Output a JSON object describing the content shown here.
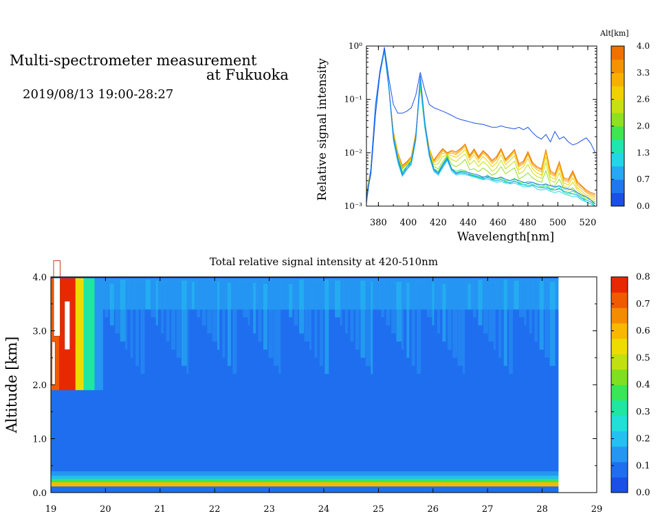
{
  "header": {
    "title_line1": "Multi-spectrometer measurement",
    "title_line2": "at Fukuoka",
    "datetime": "2019/08/13 19:00-28:27"
  },
  "chart_data": [
    {
      "type": "line",
      "xlabel": "Wavelength[nm]",
      "ylabel": "Relative signal intensity",
      "xlim": [
        372,
        526
      ],
      "ylim": [
        0.001,
        1
      ],
      "yscale": "log",
      "x_ticks": [
        "380",
        "400",
        "420",
        "440",
        "460",
        "480",
        "500",
        "520"
      ],
      "y_ticks": [
        "10⁻³",
        "10⁻²",
        "10⁻¹",
        "10⁰"
      ],
      "colorbar": {
        "label": "Alt[km]",
        "ticks": [
          "0.0",
          "0.7",
          "1.3",
          "2.0",
          "2.6",
          "3.3",
          "4.0"
        ],
        "colors": [
          "#1a50e6",
          "#1f78f0",
          "#26a8f5",
          "#22d6e8",
          "#1fe6b0",
          "#3ee650",
          "#8ee020",
          "#c8e010",
          "#f0d000",
          "#f8b000",
          "#f49200",
          "#f07000"
        ]
      },
      "x": [
        372,
        375,
        378,
        381,
        384,
        387,
        390,
        393,
        396,
        399,
        402,
        405,
        408,
        411,
        414,
        417,
        420,
        423,
        426,
        429,
        432,
        435,
        438,
        441,
        444,
        447,
        450,
        453,
        456,
        459,
        462,
        465,
        468,
        471,
        474,
        477,
        480,
        483,
        486,
        489,
        492,
        495,
        498,
        501,
        504,
        507,
        510,
        513,
        516,
        519,
        522,
        525
      ],
      "series": [
        {
          "color": "#1a50e6",
          "values": [
            0.0015,
            0.004,
            0.05,
            0.3,
            0.95,
            0.25,
            0.08,
            0.055,
            0.055,
            0.06,
            0.07,
            0.12,
            0.32,
            0.15,
            0.08,
            0.07,
            0.065,
            0.06,
            0.055,
            0.05,
            0.045,
            0.042,
            0.04,
            0.038,
            0.036,
            0.035,
            0.034,
            0.032,
            0.03,
            0.03,
            0.032,
            0.03,
            0.029,
            0.028,
            0.03,
            0.027,
            0.03,
            0.024,
            0.02,
            0.018,
            0.022,
            0.016,
            0.025,
            0.018,
            0.02,
            0.016,
            0.014,
            0.015,
            0.017,
            0.019,
            0.015,
            0.01
          ]
        },
        {
          "color": "#1f78f0",
          "values": [
            0.0012,
            0.005,
            0.08,
            0.35,
            0.9,
            0.18,
            0.02,
            0.008,
            0.004,
            0.0055,
            0.007,
            0.02,
            0.28,
            0.04,
            0.01,
            0.005,
            0.0042,
            0.006,
            0.008,
            0.005,
            0.0042,
            0.0045,
            0.0044,
            0.0042,
            0.004,
            0.0038,
            0.0035,
            0.0036,
            0.0034,
            0.0033,
            0.0035,
            0.0032,
            0.003,
            0.0032,
            0.003,
            0.0028,
            0.0027,
            0.0028,
            0.0026,
            0.0025,
            0.0026,
            0.0024,
            0.0023,
            0.0024,
            0.0022,
            0.0021,
            0.002,
            0.0018,
            0.0016,
            0.0015,
            0.0013,
            0.0011
          ]
        },
        {
          "color": "#26a8f5",
          "values": [
            0.0011,
            0.005,
            0.07,
            0.32,
            0.85,
            0.17,
            0.018,
            0.007,
            0.0038,
            0.005,
            0.0065,
            0.018,
            0.25,
            0.035,
            0.009,
            0.0048,
            0.004,
            0.0055,
            0.0075,
            0.0048,
            0.004,
            0.0042,
            0.0041,
            0.0039,
            0.0037,
            0.0035,
            0.0033,
            0.0034,
            0.0032,
            0.003,
            0.0031,
            0.0029,
            0.0027,
            0.0029,
            0.0027,
            0.0025,
            0.0024,
            0.0025,
            0.0023,
            0.0022,
            0.0022,
            0.0021,
            0.002,
            0.0021,
            0.0019,
            0.0018,
            0.0017,
            0.0016,
            0.0014,
            0.0013,
            0.0012,
            0.001
          ]
        },
        {
          "color": "#22d6e8",
          "values": [
            0.0012,
            0.005,
            0.07,
            0.3,
            0.8,
            0.16,
            0.017,
            0.0065,
            0.0036,
            0.0048,
            0.006,
            0.017,
            0.22,
            0.032,
            0.0085,
            0.0045,
            0.0038,
            0.0052,
            0.0072,
            0.0045,
            0.0038,
            0.004,
            0.0039,
            0.0037,
            0.0035,
            0.0033,
            0.0031,
            0.0032,
            0.003,
            0.0028,
            0.0029,
            0.0027,
            0.0026,
            0.0027,
            0.0025,
            0.0023,
            0.0023,
            0.0024,
            0.0021,
            0.002,
            0.0021,
            0.0019,
            0.0018,
            0.0019,
            0.0017,
            0.0016,
            0.0015,
            0.0015,
            0.0013,
            0.0012,
            0.0011,
            0.001
          ]
        },
        {
          "color": "#1fe6b0",
          "values": [
            0.0013,
            0.005,
            0.07,
            0.3,
            0.8,
            0.16,
            0.019,
            0.007,
            0.0042,
            0.005,
            0.0062,
            0.018,
            0.2,
            0.03,
            0.0085,
            0.0046,
            0.004,
            0.0056,
            0.0078,
            0.0048,
            0.0041,
            0.0043,
            0.0042,
            0.0038,
            0.0036,
            0.0034,
            0.0032,
            0.0035,
            0.0031,
            0.003,
            0.0032,
            0.0028,
            0.0028,
            0.003,
            0.0026,
            0.0025,
            0.0026,
            0.0026,
            0.0023,
            0.0022,
            0.0024,
            0.002,
            0.002,
            0.0022,
            0.0018,
            0.0017,
            0.0017,
            0.0016,
            0.0014,
            0.0012,
            0.0011,
            0.001
          ]
        },
        {
          "color": "#3ee650",
          "values": [
            0.0013,
            0.005,
            0.07,
            0.3,
            0.8,
            0.16,
            0.02,
            0.008,
            0.0045,
            0.0055,
            0.0065,
            0.02,
            0.19,
            0.03,
            0.009,
            0.005,
            0.0045,
            0.0062,
            0.0085,
            0.005,
            0.0045,
            0.0048,
            0.0046,
            0.004,
            0.0038,
            0.0036,
            0.0034,
            0.0038,
            0.0033,
            0.0032,
            0.0034,
            0.003,
            0.003,
            0.0033,
            0.0028,
            0.0027,
            0.0029,
            0.0028,
            0.0025,
            0.0023,
            0.0026,
            0.0021,
            0.0022,
            0.0024,
            0.0019,
            0.0018,
            0.0019,
            0.0017,
            0.0015,
            0.0013,
            0.0012,
            0.0011
          ]
        },
        {
          "color": "#8ee020",
          "values": [
            0.0014,
            0.005,
            0.07,
            0.3,
            0.8,
            0.16,
            0.02,
            0.008,
            0.005,
            0.006,
            0.007,
            0.02,
            0.18,
            0.03,
            0.009,
            0.0055,
            0.005,
            0.0068,
            0.009,
            0.006,
            0.0055,
            0.0062,
            0.0075,
            0.0048,
            0.005,
            0.0044,
            0.0052,
            0.0045,
            0.0038,
            0.0042,
            0.0055,
            0.004,
            0.0046,
            0.0052,
            0.0032,
            0.0036,
            0.0042,
            0.0034,
            0.003,
            0.0028,
            0.0046,
            0.0025,
            0.0024,
            0.0032,
            0.0021,
            0.002,
            0.0022,
            0.0018,
            0.0016,
            0.0014,
            0.0013,
            0.0012
          ]
        },
        {
          "color": "#c8e010",
          "values": [
            0.0015,
            0.005,
            0.07,
            0.3,
            0.8,
            0.16,
            0.022,
            0.009,
            0.005,
            0.006,
            0.0075,
            0.021,
            0.17,
            0.03,
            0.01,
            0.006,
            0.0062,
            0.0085,
            0.009,
            0.0075,
            0.0068,
            0.0082,
            0.0095,
            0.006,
            0.0072,
            0.0055,
            0.0068,
            0.0058,
            0.0045,
            0.0052,
            0.0072,
            0.005,
            0.0058,
            0.007,
            0.004,
            0.0045,
            0.006,
            0.0042,
            0.0036,
            0.0033,
            0.0065,
            0.003,
            0.0028,
            0.0042,
            0.0024,
            0.0022,
            0.0028,
            0.002,
            0.0017,
            0.0015,
            0.0014,
            0.0013
          ]
        },
        {
          "color": "#f0d000",
          "values": [
            0.0015,
            0.005,
            0.07,
            0.3,
            0.8,
            0.16,
            0.022,
            0.009,
            0.005,
            0.0062,
            0.0078,
            0.022,
            0.17,
            0.032,
            0.011,
            0.0065,
            0.0072,
            0.0098,
            0.0092,
            0.0088,
            0.0082,
            0.0095,
            0.0115,
            0.0072,
            0.0092,
            0.0066,
            0.0085,
            0.007,
            0.0055,
            0.0065,
            0.0092,
            0.006,
            0.0072,
            0.0088,
            0.0048,
            0.0055,
            0.0078,
            0.005,
            0.0042,
            0.0038,
            0.0085,
            0.0035,
            0.0032,
            0.0052,
            0.0027,
            0.0025,
            0.0034,
            0.0022,
            0.0019,
            0.0016,
            0.0015,
            0.0014
          ]
        },
        {
          "color": "#f8b000",
          "values": [
            0.0016,
            0.005,
            0.07,
            0.3,
            0.8,
            0.16,
            0.023,
            0.0095,
            0.0052,
            0.0064,
            0.008,
            0.022,
            0.17,
            0.034,
            0.012,
            0.0068,
            0.008,
            0.0108,
            0.0095,
            0.0098,
            0.0092,
            0.0108,
            0.013,
            0.008,
            0.0105,
            0.0075,
            0.0098,
            0.0082,
            0.0063,
            0.0075,
            0.0108,
            0.0068,
            0.0082,
            0.0102,
            0.0055,
            0.0062,
            0.0092,
            0.0058,
            0.0048,
            0.0044,
            0.0102,
            0.004,
            0.0036,
            0.006,
            0.003,
            0.0028,
            0.004,
            0.0025,
            0.0021,
            0.0018,
            0.0016,
            0.0015
          ]
        },
        {
          "color": "#f49200",
          "values": [
            0.0017,
            0.005,
            0.07,
            0.3,
            0.8,
            0.16,
            0.024,
            0.01,
            0.0055,
            0.0066,
            0.0082,
            0.023,
            0.17,
            0.035,
            0.012,
            0.007,
            0.0088,
            0.0115,
            0.0098,
            0.0105,
            0.0098,
            0.0115,
            0.014,
            0.0085,
            0.0112,
            0.008,
            0.0105,
            0.0088,
            0.0068,
            0.008,
            0.0115,
            0.0072,
            0.0088,
            0.011,
            0.0058,
            0.0066,
            0.0098,
            0.0062,
            0.0052,
            0.0048,
            0.011,
            0.0043,
            0.0038,
            0.0065,
            0.0032,
            0.003,
            0.0043,
            0.0027,
            0.0023,
            0.0019,
            0.0017,
            0.0016
          ]
        },
        {
          "color": "#f07000",
          "values": [
            0.0018,
            0.005,
            0.07,
            0.3,
            0.8,
            0.16,
            0.025,
            0.01,
            0.0058,
            0.0068,
            0.0085,
            0.024,
            0.17,
            0.036,
            0.012,
            0.0072,
            0.0095,
            0.012,
            0.01,
            0.011,
            0.0105,
            0.012,
            0.0145,
            0.009,
            0.0118,
            0.0085,
            0.011,
            0.0092,
            0.0072,
            0.0085,
            0.012,
            0.0076,
            0.0092,
            0.0115,
            0.0062,
            0.007,
            0.0105,
            0.0066,
            0.0055,
            0.005,
            0.0115,
            0.0046,
            0.004,
            0.0068,
            0.0034,
            0.0032,
            0.0046,
            0.0029,
            0.0024,
            0.002,
            0.0018,
            0.0017
          ]
        }
      ]
    },
    {
      "type": "heatmap",
      "title": "Total relative signal intensity at 420-510nm",
      "ylabel": "Altitude [km]",
      "xlim": [
        19,
        29
      ],
      "ylim": [
        0,
        4
      ],
      "x_ticks": [
        "19",
        "20",
        "21",
        "22",
        "23",
        "24",
        "25",
        "26",
        "27",
        "28",
        "29"
      ],
      "y_ticks": [
        "0.0",
        "1.0",
        "2.0",
        "3.0",
        "4.0"
      ],
      "data_x_range": [
        19,
        28.3
      ],
      "colorbar": {
        "range": [
          0,
          0.8
        ],
        "ticks": [
          "0.0",
          "0.1",
          "0.2",
          "0.3",
          "0.4",
          "0.5",
          "0.6",
          "0.7",
          "0.8"
        ],
        "colors": [
          "#1a50e6",
          "#1f6ef0",
          "#2596f2",
          "#24c0f0",
          "#20e0d8",
          "#1fe6a0",
          "#38e658",
          "#7ee020",
          "#c0e010",
          "#eedc00",
          "#f8b800",
          "#f48c00",
          "#f05a00",
          "#e82800"
        ]
      },
      "bands": [
        {
          "alt": [
            0.0,
            0.12
          ],
          "value": 0.1
        },
        {
          "alt": [
            0.12,
            0.2
          ],
          "value": 0.62
        },
        {
          "alt": [
            0.2,
            0.26
          ],
          "value": 0.38
        },
        {
          "alt": [
            0.26,
            0.32
          ],
          "value": 0.2
        },
        {
          "alt": [
            0.32,
            0.4
          ],
          "value": 0.14
        },
        {
          "alt": [
            0.4,
            1.6
          ],
          "value": 0.06
        },
        {
          "alt": [
            1.6,
            2.5
          ],
          "value": 0.085
        },
        {
          "alt": [
            2.5,
            3.4
          ],
          "value": 0.11
        },
        {
          "alt": [
            3.4,
            4.0
          ],
          "value": 0.15
        }
      ],
      "columns": [
        {
          "x": 19.0,
          "value": 0.7
        },
        {
          "x": 19.15,
          "value": 0.8
        },
        {
          "x": 19.3,
          "value": 0.75
        },
        {
          "x": 19.45,
          "value": 0.55
        },
        {
          "x": 19.6,
          "value": 0.3
        },
        {
          "x": 19.8,
          "value": 0.16
        }
      ]
    }
  ]
}
